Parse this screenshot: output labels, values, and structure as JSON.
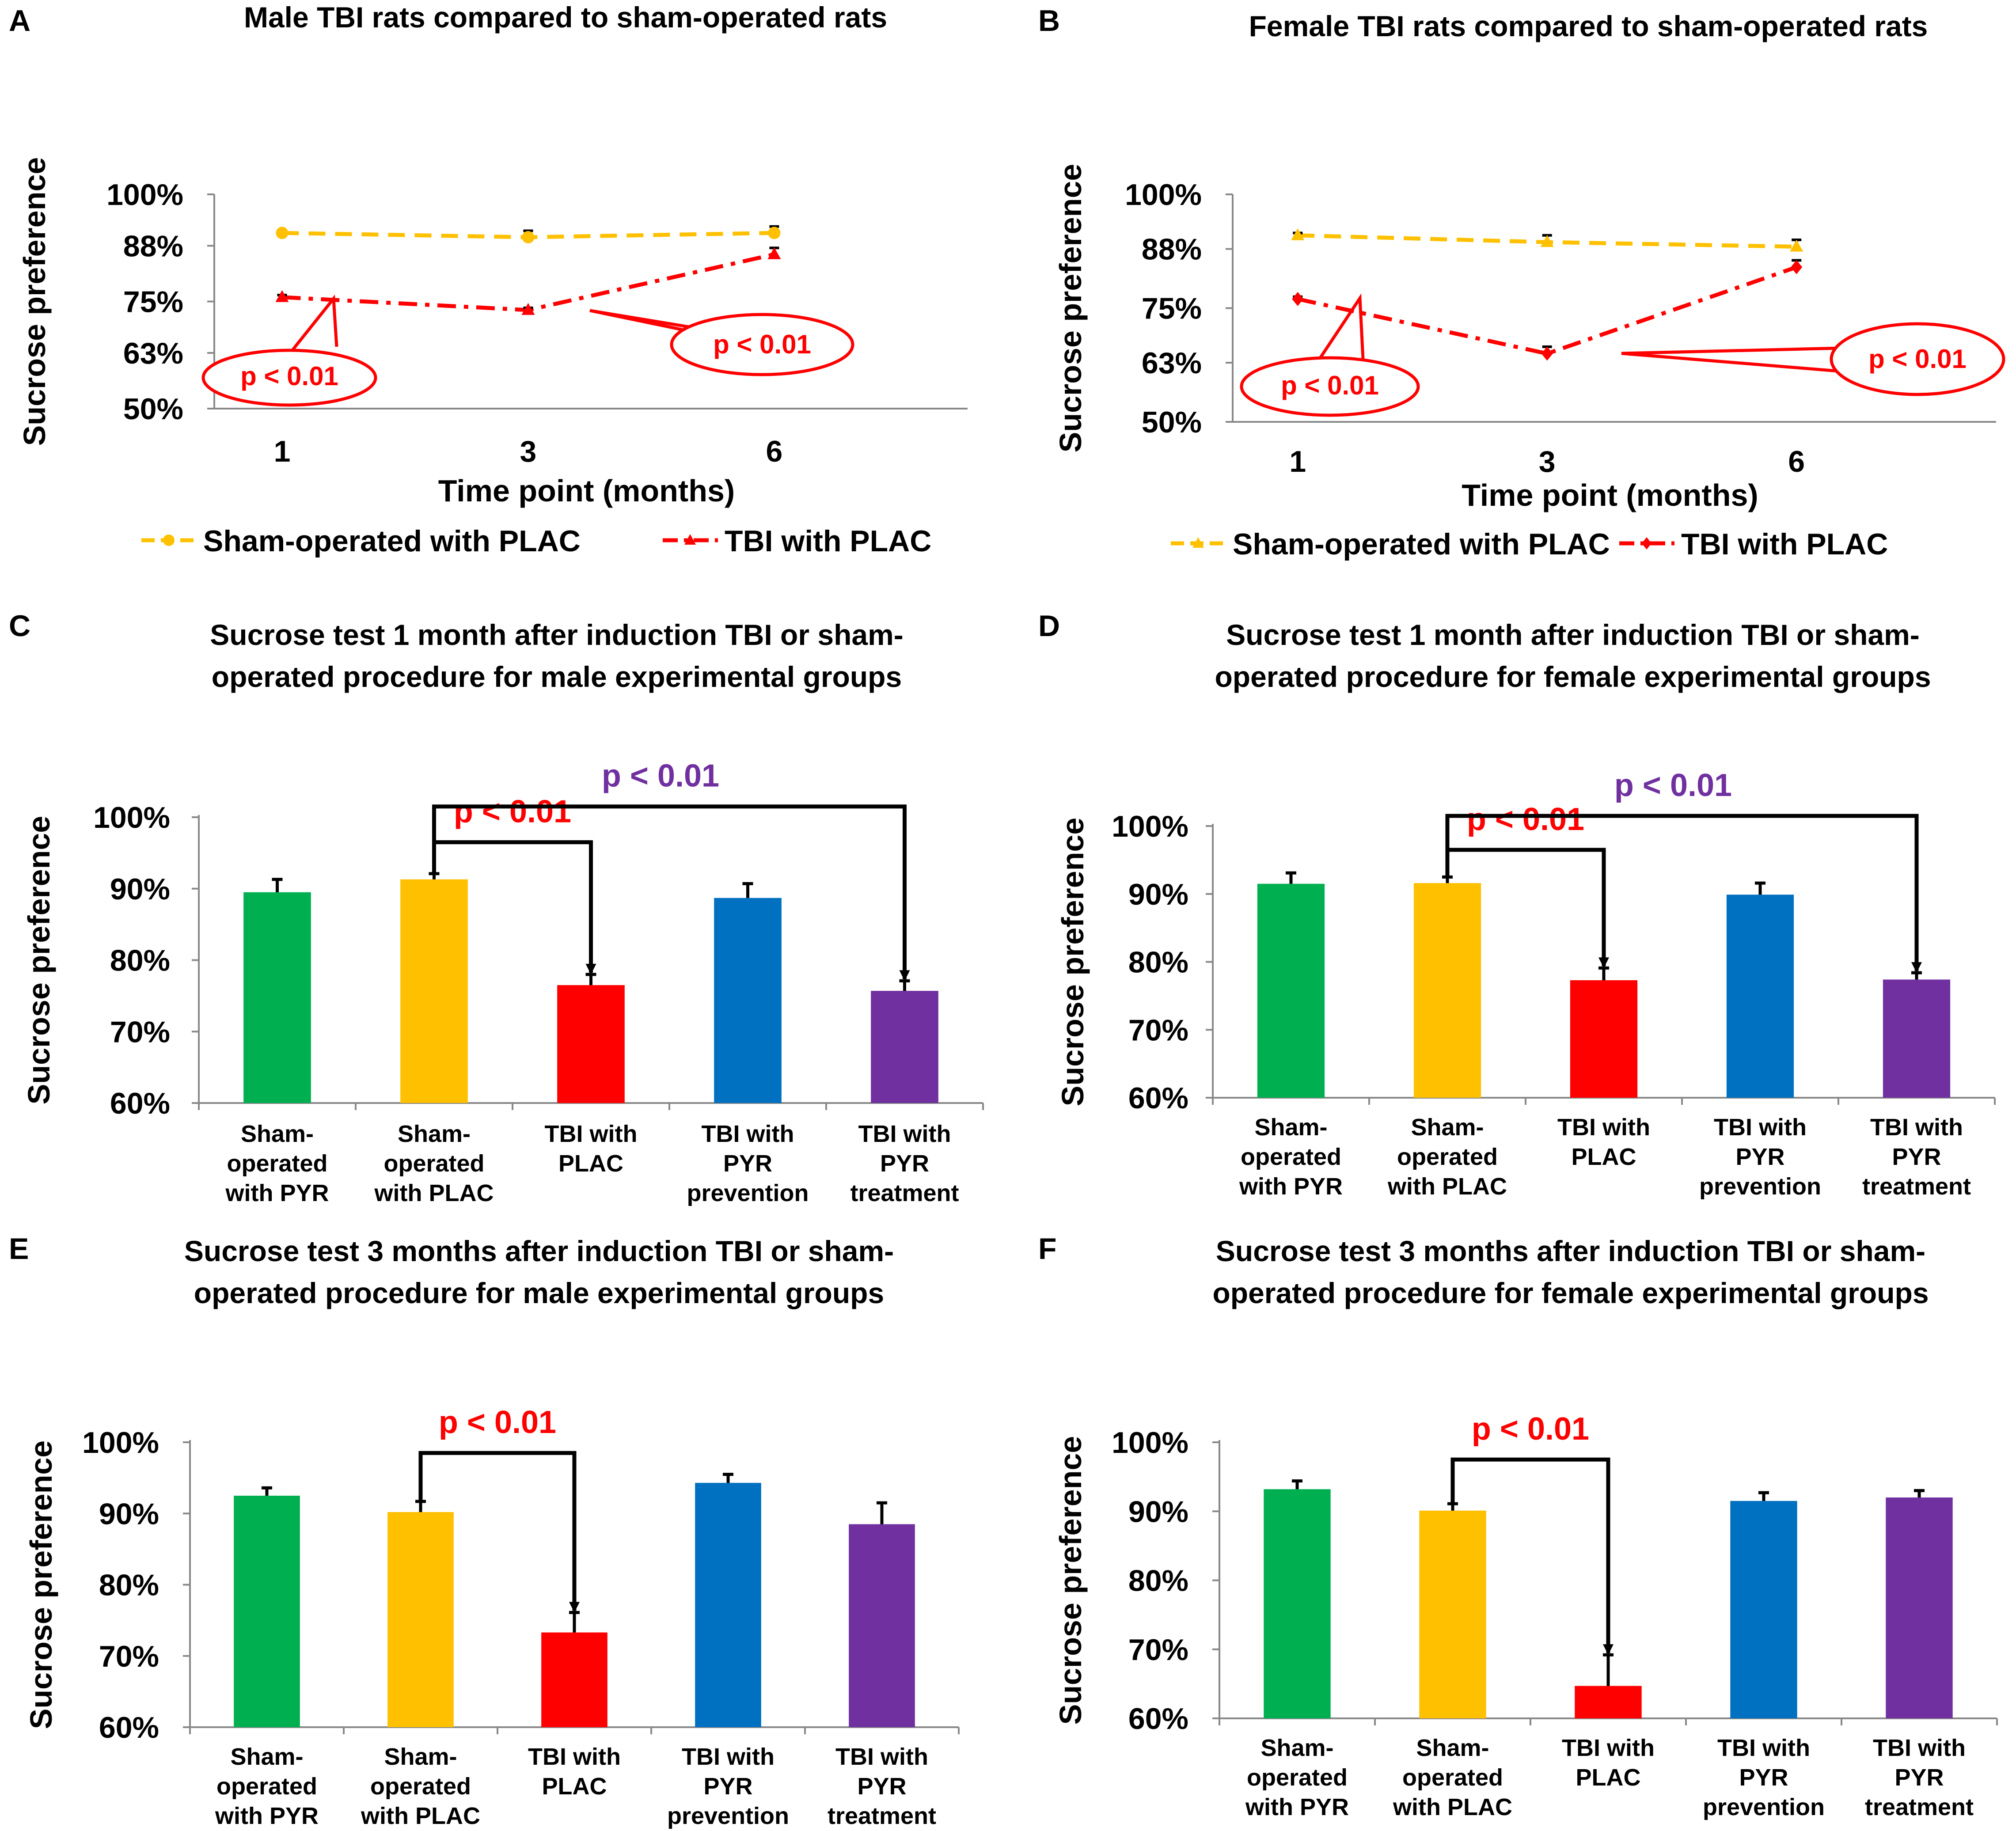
{
  "chart_data": [
    {
      "panel": "A",
      "type": "line",
      "title": "Male TBI rats compared to sham-operated rats",
      "xlabel": "Time point (months)",
      "ylabel": "Sucrose preference",
      "x": [
        "1",
        "3",
        "6"
      ],
      "yticks": [
        "100%",
        "88%",
        "75%",
        "63%",
        "50%"
      ],
      "ylim": [
        50,
        100
      ],
      "series": [
        {
          "name": "Sham-operated with PLAC",
          "color": "#ffc000",
          "marker": "circle",
          "values": [
            91,
            90,
            91
          ],
          "errors": [
            0.5,
            1.5,
            1.5
          ]
        },
        {
          "name": "TBI with PLAC",
          "color": "#ff0000",
          "marker": "triangle",
          "values": [
            76,
            73,
            86
          ],
          "errors": [
            0.5,
            0.5,
            1.5
          ]
        }
      ],
      "annotations": [
        "p < 0.01",
        "p < 0.01"
      ]
    },
    {
      "panel": "B",
      "type": "line",
      "title": "Female TBI rats compared to sham-operated rats",
      "xlabel": "Time point (months)",
      "ylabel": "Sucrose preference",
      "x": [
        "1",
        "3",
        "6"
      ],
      "yticks": [
        "100%",
        "88%",
        "75%",
        "63%",
        "50%"
      ],
      "ylim": [
        50,
        100
      ],
      "series": [
        {
          "name": "Sham-operated with PLAC",
          "color": "#ffc000",
          "marker": "triangle",
          "values": [
            91,
            89.5,
            88.5
          ],
          "errors": [
            0.5,
            1.5,
            1.5
          ]
        },
        {
          "name": "TBI with PLAC",
          "color": "#ff0000",
          "marker": "diamond",
          "values": [
            77,
            65,
            84
          ],
          "errors": [
            0.5,
            1.5,
            1.5
          ]
        }
      ],
      "annotations": [
        "p < 0.01",
        "p < 0.01"
      ]
    },
    {
      "panel": "C",
      "type": "bar",
      "title": [
        "Sucrose test 1 month after induction TBI or sham-",
        "operated procedure for  male experimental groups"
      ],
      "ylabel": "Sucrose preference",
      "categories": [
        [
          "Sham-",
          "operated",
          "with PYR"
        ],
        [
          "Sham-",
          "operated",
          "with PLAC"
        ],
        [
          "TBI with",
          "PLAC"
        ],
        [
          "TBI with",
          "PYR",
          "prevention"
        ],
        [
          "TBI with",
          "PYR",
          "treatment"
        ]
      ],
      "values": [
        89.5,
        91.3,
        76.5,
        88.7,
        75.7
      ],
      "errors": [
        1.8,
        0.8,
        1.5,
        2.0,
        1.4
      ],
      "colors": [
        "#00b050",
        "#ffc000",
        "#ff0000",
        "#0070c0",
        "#7030a0"
      ],
      "yticks": [
        "100%",
        "90%",
        "80%",
        "70%",
        "60%"
      ],
      "ylim": [
        60,
        100
      ],
      "brackets": [
        {
          "from": 1,
          "to": 2,
          "label": "p < 0.01",
          "color": "#ff0000",
          "level": 96.5
        },
        {
          "from": 1,
          "to": 4,
          "label": "p < 0.01",
          "color": "#7030a0",
          "level": 101.5
        }
      ]
    },
    {
      "panel": "D",
      "type": "bar",
      "title": [
        "Sucrose test 1 month after induction TBI or sham-",
        "operated procedure for  female experimental groups"
      ],
      "ylabel": "Sucrose preference",
      "categories": [
        [
          "Sham-",
          "operated",
          "with PYR"
        ],
        [
          "Sham-",
          "operated",
          "with PLAC"
        ],
        [
          "TBI with",
          "PLAC"
        ],
        [
          "TBI with",
          "PYR",
          "prevention"
        ],
        [
          "TBI with",
          "PYR",
          "treatment"
        ]
      ],
      "values": [
        91.5,
        91.6,
        77.3,
        89.9,
        77.4
      ],
      "errors": [
        1.6,
        0.9,
        1.8,
        1.7,
        1.0
      ],
      "colors": [
        "#00b050",
        "#ffc000",
        "#ff0000",
        "#0070c0",
        "#7030a0"
      ],
      "yticks": [
        "100%",
        "90%",
        "80%",
        "70%",
        "60%"
      ],
      "ylim": [
        60,
        100
      ],
      "brackets": [
        {
          "from": 1,
          "to": 2,
          "label": "p < 0.01",
          "color": "#ff0000",
          "level": 96.5
        },
        {
          "from": 1,
          "to": 4,
          "label": "p < 0.01",
          "color": "#7030a0",
          "level": 101.5
        }
      ]
    },
    {
      "panel": "E",
      "type": "bar",
      "title": [
        "Sucrose test 3 months after induction TBI or sham-",
        "operated procedure for  male experimental groups"
      ],
      "ylabel": "Sucrose preference",
      "categories": [
        [
          "Sham-",
          "operated",
          "with PYR"
        ],
        [
          "Sham-",
          "operated",
          "with PLAC"
        ],
        [
          "TBI with",
          "PLAC"
        ],
        [
          "TBI with",
          "PYR",
          "prevention"
        ],
        [
          "TBI with",
          "PYR",
          "treatment"
        ]
      ],
      "values": [
        92.5,
        90.2,
        73.3,
        94.3,
        88.5
      ],
      "errors": [
        1.1,
        1.5,
        2.8,
        1.2,
        3.0
      ],
      "colors": [
        "#00b050",
        "#ffc000",
        "#ff0000",
        "#0070c0",
        "#7030a0"
      ],
      "yticks": [
        "100%",
        "90%",
        "80%",
        "70%",
        "60%"
      ],
      "ylim": [
        60,
        100
      ],
      "brackets": [
        {
          "from": 1,
          "to": 2,
          "label": "p < 0.01",
          "color": "#ff0000",
          "level": 98.5
        }
      ]
    },
    {
      "panel": "F",
      "type": "bar",
      "title": [
        "Sucrose test 3 months after induction TBI or sham-",
        "operated procedure for  female experimental groups"
      ],
      "ylabel": "Sucrose preference",
      "categories": [
        [
          "Sham-",
          "operated",
          "with PYR"
        ],
        [
          "Sham-",
          "operated",
          "with PLAC"
        ],
        [
          "TBI with",
          "PLAC"
        ],
        [
          "TBI with",
          "PYR",
          "prevention"
        ],
        [
          "TBI with",
          "PYR",
          "treatment"
        ]
      ],
      "values": [
        93.2,
        90.1,
        64.7,
        91.5,
        92.0
      ],
      "errors": [
        1.2,
        1.0,
        4.5,
        1.2,
        1.0
      ],
      "colors": [
        "#00b050",
        "#ffc000",
        "#ff0000",
        "#0070c0",
        "#7030a0"
      ],
      "yticks": [
        "100%",
        "90%",
        "80%",
        "70%",
        "60%"
      ],
      "ylim": [
        60,
        100
      ],
      "brackets": [
        {
          "from": 1,
          "to": 2,
          "label": "p < 0.01",
          "color": "#ff0000",
          "level": 97.5
        }
      ]
    }
  ]
}
